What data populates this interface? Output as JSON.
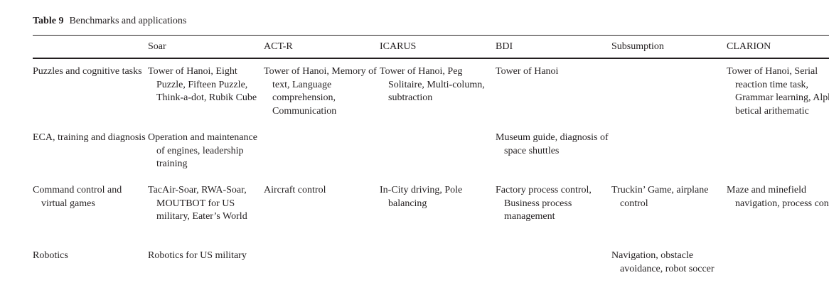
{
  "table": {
    "label": "Table 9",
    "title": "Benchmarks and applications",
    "columns": [
      "Soar",
      "ACT-R",
      "ICARUS",
      "BDI",
      "Subsumption",
      "CLARION"
    ],
    "rows": [
      {
        "category": "Puzzles and cognitive tasks",
        "cells": [
          "Tower of Hanoi, Eight Puzzle, Fifteen Puzzle, Think-a-dot, Rubik Cube",
          "Tower of Hanoi, Memory of text, Language comprehension, Communication",
          "Tower of Hanoi, Peg Solitaire, Multi-column, subtraction",
          "Tower of Hanoi",
          "",
          "Tower of Hanoi, Serial reaction time task, Grammar learning, Alpha-betical arithematic"
        ]
      },
      {
        "category": "ECA, training and diagnosis",
        "cells": [
          "Operation and maintenance of engines, leadership training",
          "",
          "",
          "Museum guide, diagnosis of space shuttles",
          "",
          ""
        ]
      },
      {
        "category": "Command control and virtual games",
        "cells": [
          "TacAir-Soar, RWA-Soar, MOUTBOT for US military, Eater’s World",
          "Aircraft control",
          "In-City driving, Pole balancing",
          "Factory process control, Business process management",
          "Truckin’ Game, airplane control",
          "Maze and minefield navigation, process control"
        ]
      },
      {
        "category": "Robotics",
        "cells": [
          "Robotics for US military",
          "",
          "",
          "",
          "Navigation, obstacle avoidance, robot soccer",
          ""
        ]
      }
    ]
  }
}
